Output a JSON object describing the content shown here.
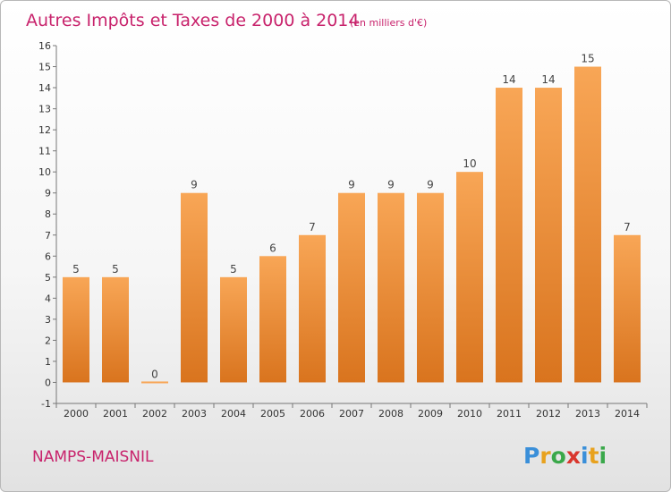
{
  "title": "Autres Impôts et Taxes de 2000 à 2014",
  "subtitle": "(en milliers d'€)",
  "commune": "NAMPS-MAISNIL",
  "logo": {
    "letters": [
      "P",
      "r",
      "o",
      "x",
      "i",
      "t",
      "i"
    ],
    "colors": [
      "#3a8fd9",
      "#e8a21e",
      "#3aa84a",
      "#d9362d",
      "#3a8fd9",
      "#e8a21e",
      "#3aa84a"
    ]
  },
  "colors": {
    "bar_light": "#f8a656",
    "bar_dark": "#d9741e",
    "title": "#c8236c"
  },
  "chart_data": {
    "type": "bar",
    "title": "Autres Impôts et Taxes de 2000 à 2014",
    "subtitle": "(en milliers d'€)",
    "categories": [
      "2000",
      "2001",
      "2002",
      "2003",
      "2004",
      "2005",
      "2006",
      "2007",
      "2008",
      "2009",
      "2010",
      "2011",
      "2012",
      "2013",
      "2014"
    ],
    "values": [
      5,
      5,
      0,
      9,
      5,
      6,
      7,
      9,
      9,
      9,
      10,
      14,
      14,
      15,
      7
    ],
    "ylim": [
      -1,
      16
    ],
    "yticks": [
      "-1",
      "0",
      "1",
      "2",
      "3",
      "4",
      "5",
      "6",
      "7",
      "8",
      "9",
      "10",
      "11",
      "12",
      "13",
      "14",
      "15",
      "16"
    ],
    "grid": false
  }
}
